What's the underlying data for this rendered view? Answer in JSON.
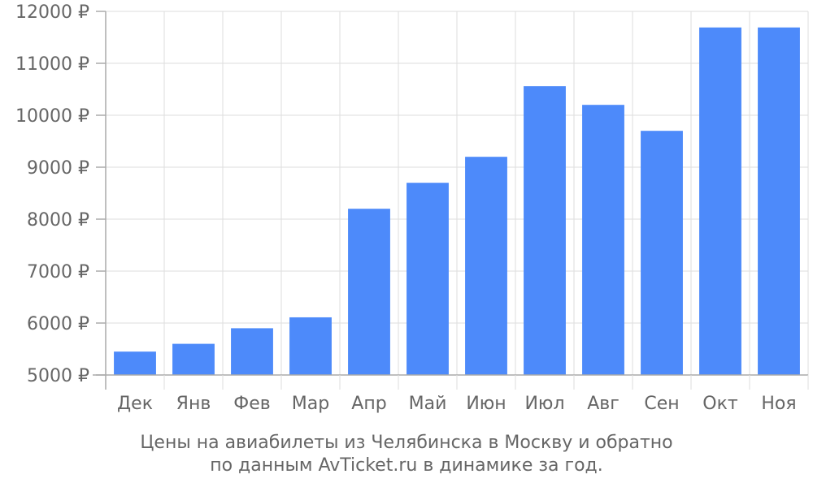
{
  "chart_data": {
    "type": "bar",
    "categories": [
      "Дек",
      "Янв",
      "Фев",
      "Мар",
      "Апр",
      "Май",
      "Июн",
      "Июл",
      "Авг",
      "Сен",
      "Окт",
      "Ноя"
    ],
    "values": [
      5450,
      5600,
      5900,
      6110,
      8200,
      8700,
      9200,
      10560,
      10200,
      9700,
      11690,
      11690
    ],
    "ylim": [
      5000,
      12000
    ],
    "yticks": [
      5000,
      6000,
      7000,
      8000,
      9000,
      10000,
      11000,
      12000
    ],
    "currency_symbol": "₽",
    "bar_color": "#4d8afa",
    "grid": true,
    "caption_lines": [
      "Цены на авиабилеты из Челябинска в Москву и обратно",
      "по данным AvTicket.ru в динамике за год."
    ]
  }
}
